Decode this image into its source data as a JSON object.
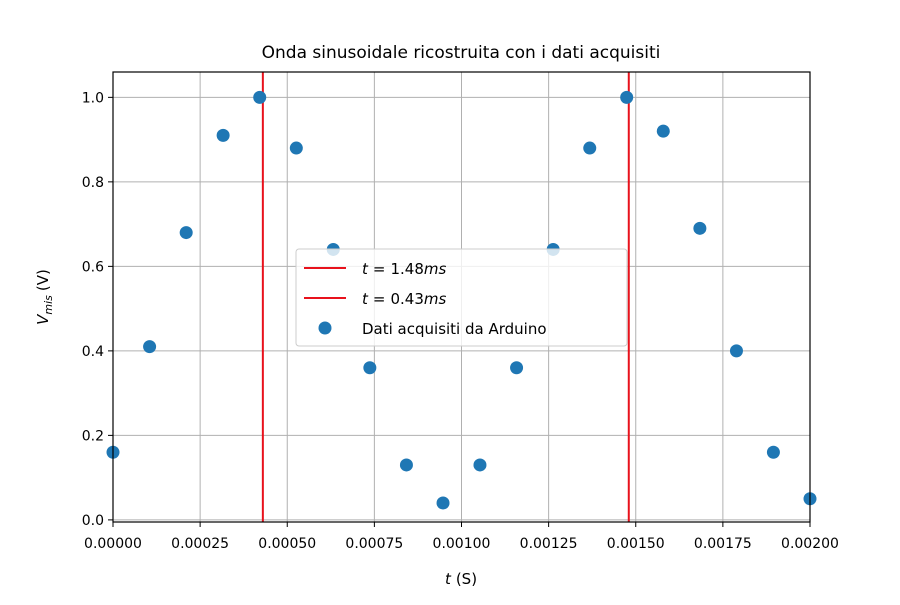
{
  "colors": {
    "points": "#1f77b4",
    "vlines": "#e8121c",
    "grid": "#b0b0b0",
    "axes": "#000000",
    "legend_border": "#cccccc"
  },
  "chart_data": {
    "type": "scatter",
    "title": "Onda sinusoidale ricostruita con i dati acquisiti",
    "xlabel": {
      "main": "t",
      "unit": "(S)"
    },
    "ylabel": {
      "main": "V",
      "sub": "mis",
      "unit": "(V)"
    },
    "xlim": [
      0,
      0.002
    ],
    "ylim": [
      -0.005,
      1.06
    ],
    "grid": true,
    "legend_position": "center",
    "x_ticks": [
      {
        "value": 0.0,
        "label": "0.00000"
      },
      {
        "value": 0.00025,
        "label": "0.00025"
      },
      {
        "value": 0.0005,
        "label": "0.00050"
      },
      {
        "value": 0.00075,
        "label": "0.00075"
      },
      {
        "value": 0.001,
        "label": "0.00100"
      },
      {
        "value": 0.00125,
        "label": "0.00125"
      },
      {
        "value": 0.0015,
        "label": "0.00150"
      },
      {
        "value": 0.00175,
        "label": "0.00175"
      },
      {
        "value": 0.002,
        "label": "0.00200"
      }
    ],
    "y_ticks": [
      {
        "value": 0.0,
        "label": "0.0"
      },
      {
        "value": 0.2,
        "label": "0.2"
      },
      {
        "value": 0.4,
        "label": "0.4"
      },
      {
        "value": 0.6,
        "label": "0.6"
      },
      {
        "value": 0.8,
        "label": "0.8"
      },
      {
        "value": 1.0,
        "label": "1.0"
      }
    ],
    "series": [
      {
        "name": "Dati acquisiti da Arduino",
        "x": [
          0.0,
          0.000105,
          0.00021,
          0.000316,
          0.000421,
          0.000526,
          0.000632,
          0.000737,
          0.000842,
          0.000947,
          0.001053,
          0.001158,
          0.001263,
          0.001368,
          0.001474,
          0.001579,
          0.001684,
          0.001789,
          0.001895,
          0.002
        ],
        "y": [
          0.16,
          0.41,
          0.68,
          0.91,
          1.0,
          0.88,
          0.64,
          0.36,
          0.13,
          0.04,
          0.13,
          0.36,
          0.64,
          0.88,
          1.0,
          0.92,
          0.69,
          0.4,
          0.16,
          0.05
        ]
      }
    ],
    "vlines": [
      {
        "x": 0.00148,
        "label_var": "t",
        "label_value": "1.48",
        "label_unit": "ms"
      },
      {
        "x": 0.00043,
        "label_var": "t",
        "label_value": "0.43",
        "label_unit": "ms"
      }
    ]
  }
}
